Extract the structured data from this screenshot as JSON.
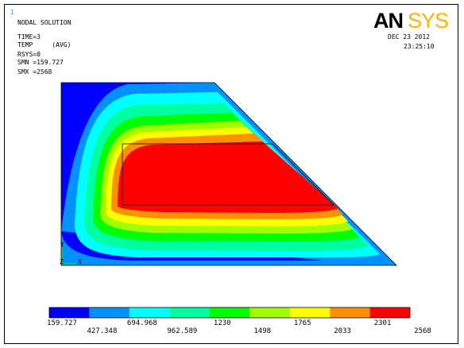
{
  "window_number": "1",
  "header": {
    "title": "NODAL SOLUTION",
    "lines": [
      "TIME=3",
      "TEMP     (AVG)",
      "RSYS=0",
      "SMN =159.727",
      "SMX =2568"
    ]
  },
  "brand": {
    "logo_text": "ANSYS"
  },
  "timestamp": {
    "date": "DEC 23 2012",
    "time": "23:25:10"
  },
  "triad": {
    "y_label": "Y",
    "z_label": "Z",
    "x_label": "X"
  },
  "legend": {
    "colors": [
      "#0000ff",
      "#0091ff",
      "#00ffff",
      "#00ffa0",
      "#00ff00",
      "#a0ff00",
      "#ffff00",
      "#ff9100",
      "#ff0000"
    ],
    "labels_top_row": [
      "159.727",
      "694.968",
      "1230",
      "1765",
      "2301"
    ],
    "labels_bottom_row": [
      "427.348",
      "962.589",
      "1498",
      "2033",
      "2568"
    ]
  },
  "colors": {
    "band_1": "#0000ff",
    "band_2": "#0091ff",
    "band_3": "#00ffff",
    "band_4": "#00ffa0",
    "band_5": "#00ff00",
    "band_6": "#a0ff00",
    "band_7": "#ffff00",
    "band_8": "#ff9100",
    "band_9": "#ff0000"
  }
}
